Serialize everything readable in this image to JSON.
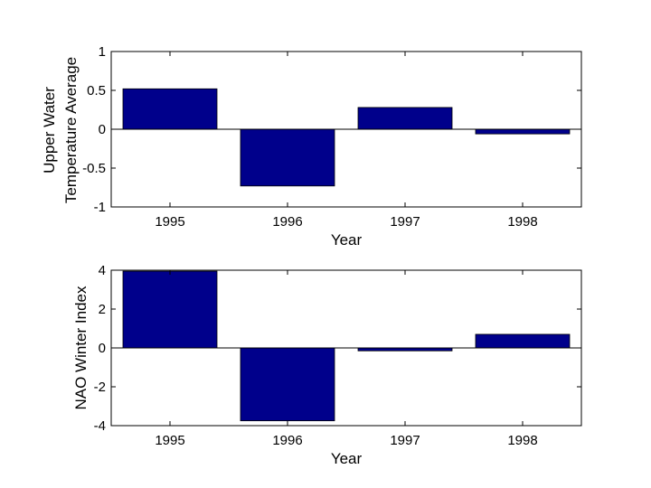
{
  "chart_data": [
    {
      "type": "bar",
      "categories": [
        "1995",
        "1996",
        "1997",
        "1998"
      ],
      "values": [
        0.52,
        -0.73,
        0.28,
        -0.06
      ],
      "xlabel": "Year",
      "ylabel_lines": [
        "Upper Water",
        "Temperature Average"
      ],
      "ylim": [
        -1,
        1
      ],
      "yticks": [
        1,
        0.5,
        0,
        -0.5,
        -1
      ],
      "ytick_labels": [
        "1",
        "0.5",
        "0",
        "-0.5",
        "-1"
      ],
      "bar_color": "#00008b",
      "grid": false
    },
    {
      "type": "bar",
      "categories": [
        "1995",
        "1996",
        "1997",
        "1998"
      ],
      "values": [
        3.95,
        -3.75,
        -0.15,
        0.7
      ],
      "xlabel": "Year",
      "ylabel_lines": [
        "NAO Winter Index"
      ],
      "ylim": [
        -4,
        4
      ],
      "yticks": [
        4,
        2,
        0,
        -2,
        -4
      ],
      "ytick_labels": [
        "4",
        "2",
        "0",
        "-2",
        "-4"
      ],
      "bar_color": "#00008b",
      "grid": false
    }
  ]
}
